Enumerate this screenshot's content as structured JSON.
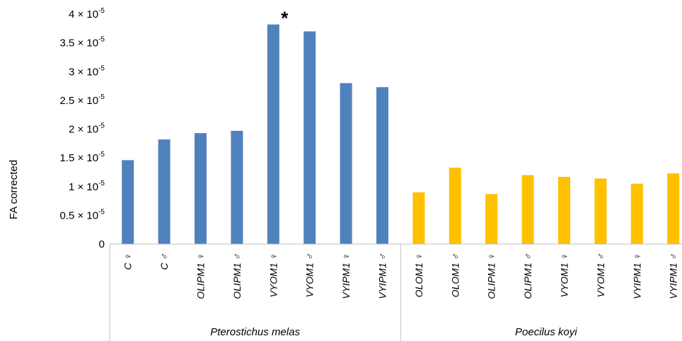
{
  "chart_data": {
    "type": "bar",
    "ylabel": "FA corrected",
    "ylim": [
      0,
      4e-05
    ],
    "yticks": [
      0,
      5e-06,
      1e-05,
      1.5e-05,
      2e-05,
      2.5e-05,
      3e-05,
      3.5e-05,
      4e-05
    ],
    "ytick_labels": [
      "0",
      "0.5 × 10^-5",
      "1 × 10^-5",
      "1.5 × 10^-5",
      "2 × 10^-5",
      "2.5 × 10^-5",
      "3 × 10^-5",
      "3.5 × 10^-5",
      "4 × 10^-5"
    ],
    "grid": false,
    "groups": [
      {
        "name": "Pterostichus melas",
        "color": "#4f81bd",
        "categories": [
          "C ♀",
          "C ♂",
          "OLIPM1 ♀",
          "OLIPM1 ♂",
          "VYOM1 ♀",
          "VYOM1 ♂",
          "VYIPM1 ♀",
          "VYIPM1 ♂"
        ],
        "values": [
          1.46e-05,
          1.82e-05,
          1.93e-05,
          1.97e-05,
          3.82e-05,
          3.7e-05,
          2.8e-05,
          2.73e-05
        ]
      },
      {
        "name": "Poecilus koyi",
        "color": "#ffc000",
        "categories": [
          "OLOM1 ♀",
          "OLOM1 ♂",
          "OLIPM1 ♀",
          "OLIPM1 ♂",
          "VYOM1 ♀",
          "VYOM1 ♂",
          "VYIPM1 ♀",
          "VYIPM1 ♂"
        ],
        "values": [
          9e-06,
          1.33e-05,
          8.7e-06,
          1.2e-05,
          1.17e-05,
          1.14e-05,
          1.05e-05,
          1.23e-05
        ]
      }
    ],
    "annotations": [
      {
        "text": "*",
        "group": 0,
        "index": 4
      }
    ]
  }
}
